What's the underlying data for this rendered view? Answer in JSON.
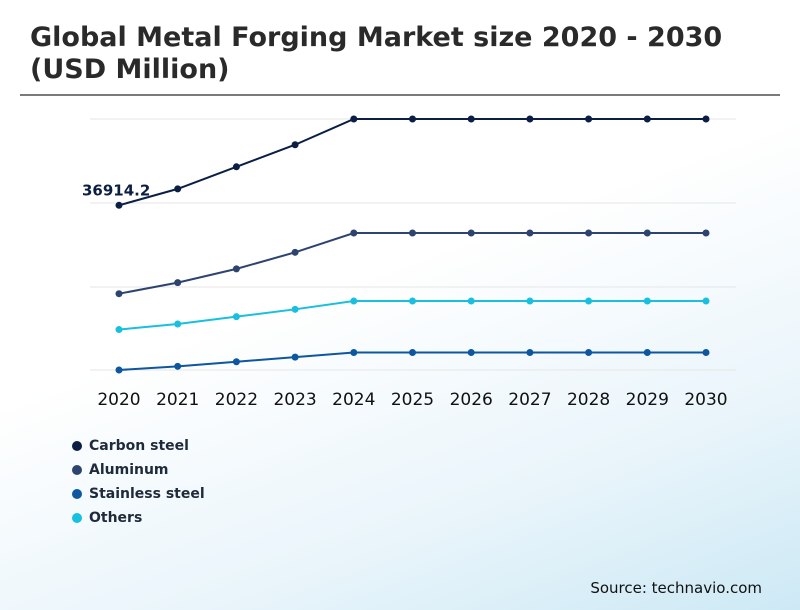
{
  "header": {
    "title": "Global Metal Forging Market size 2020 - 2030 (USD Million)"
  },
  "source": "Source: technavio.com",
  "colors": {
    "carbon_steel": "#0b1f45",
    "aluminum": "#2e4470",
    "stainless_steel": "#0d56a0",
    "others": "#19bfdf"
  },
  "chart_data": {
    "type": "line",
    "title": "Global Metal Forging Market size 2020 - 2030 (USD Million)",
    "x": [
      "2020",
      "2021",
      "2022",
      "2023",
      "2024",
      "2025",
      "2026",
      "2027",
      "2028",
      "2029",
      "2030"
    ],
    "grid": true,
    "legend_position": "bottom-left",
    "series": [
      {
        "name": "Carbon steel",
        "color": "#0b1f45",
        "values": [
          36914.2,
          38700,
          41100,
          43500,
          46300,
          46300,
          46300,
          46300,
          46300,
          46300,
          46300
        ]
      },
      {
        "name": "Aluminum",
        "color": "#2e4470",
        "values": [
          27300,
          28500,
          30000,
          31800,
          33900,
          33900,
          33900,
          33900,
          33900,
          33900,
          33900
        ]
      },
      {
        "name": "Stainless steel",
        "color": "#0d56a0",
        "values": [
          19000,
          19400,
          19900,
          20400,
          20900,
          20900,
          20900,
          20900,
          20900,
          20900,
          20900
        ]
      },
      {
        "name": "Others",
        "color": "#19bfdf",
        "values": [
          23400,
          24000,
          24800,
          25600,
          26500,
          26500,
          26500,
          26500,
          26500,
          26500,
          26500
        ]
      }
    ],
    "annotation": {
      "series": "Carbon steel",
      "x": "2020",
      "label": "36914.2"
    },
    "ylim": [
      19000,
      46300
    ]
  }
}
